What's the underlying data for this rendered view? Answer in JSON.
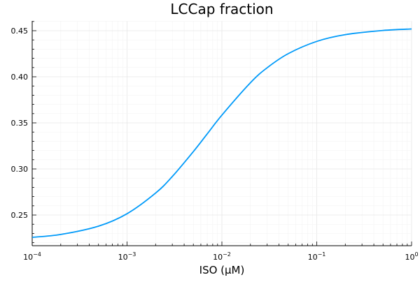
{
  "chart_data": {
    "type": "line",
    "title": "LCCap fraction",
    "xlabel": "ISO (μM)",
    "ylabel": "",
    "xscale": "log10",
    "xlim": [
      0.0001,
      1
    ],
    "ylim": [
      0.2167,
      0.4606
    ],
    "grid": true,
    "legend": "none",
    "x_ticks": [
      {
        "base": "10",
        "exp": "−4"
      },
      {
        "base": "10",
        "exp": "−3"
      },
      {
        "base": "10",
        "exp": "−2"
      },
      {
        "base": "10",
        "exp": "−1"
      },
      {
        "base": "10",
        "exp": "0"
      }
    ],
    "y_ticks": [
      "0.25",
      "0.30",
      "0.35",
      "0.40",
      "0.45"
    ],
    "series": [
      {
        "color": "#009af9",
        "x": [
          0.0001,
          0.0002,
          0.0005,
          0.001,
          0.002,
          0.003,
          0.005,
          0.007,
          0.01,
          0.02,
          0.03,
          0.05,
          0.1,
          0.2,
          0.5,
          1
        ],
        "y": [
          0.2258,
          0.2289,
          0.2379,
          0.2514,
          0.2738,
          0.2918,
          0.3188,
          0.338,
          0.3584,
          0.3936,
          0.4098,
          0.4251,
          0.4384,
          0.4457,
          0.4503,
          0.4519
        ]
      }
    ]
  }
}
